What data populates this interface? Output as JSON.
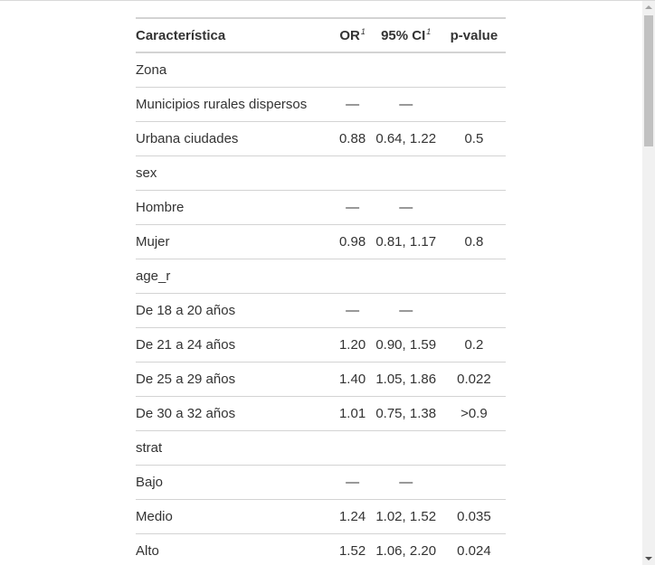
{
  "table": {
    "headers": {
      "characteristic": "Característica",
      "or": "OR",
      "or_footnote": "1",
      "ci": "95% CI",
      "ci_footnote": "1",
      "pvalue": "p-value"
    },
    "rows": [
      {
        "label": "Zona",
        "or": "",
        "ci": "",
        "p": "",
        "indent": false
      },
      {
        "label": "Municipios rurales dispersos",
        "or": "—",
        "ci": "—",
        "p": "",
        "indent": true
      },
      {
        "label": "Urbana ciudades",
        "or": "0.88",
        "ci": "0.64, 1.22",
        "p": "0.5",
        "indent": true
      },
      {
        "label": "sex",
        "or": "",
        "ci": "",
        "p": "",
        "indent": false
      },
      {
        "label": "Hombre",
        "or": "—",
        "ci": "—",
        "p": "",
        "indent": true
      },
      {
        "label": "Mujer",
        "or": "0.98",
        "ci": "0.81, 1.17",
        "p": "0.8",
        "indent": true
      },
      {
        "label": "age_r",
        "or": "",
        "ci": "",
        "p": "",
        "indent": false
      },
      {
        "label": "De 18 a 20 años",
        "or": "—",
        "ci": "—",
        "p": "",
        "indent": true
      },
      {
        "label": "De 21 a 24 años",
        "or": "1.20",
        "ci": "0.90, 1.59",
        "p": "0.2",
        "indent": true
      },
      {
        "label": "De 25 a 29 años",
        "or": "1.40",
        "ci": "1.05, 1.86",
        "p": "0.022",
        "indent": true
      },
      {
        "label": "De 30 a 32 años",
        "or": "1.01",
        "ci": "0.75, 1.38",
        "p": ">0.9",
        "indent": true
      },
      {
        "label": "strat",
        "or": "",
        "ci": "",
        "p": "",
        "indent": false
      },
      {
        "label": "Bajo",
        "or": "—",
        "ci": "—",
        "p": "",
        "indent": true
      },
      {
        "label": "Medio",
        "or": "1.24",
        "ci": "1.02, 1.52",
        "p": "0.035",
        "indent": true
      },
      {
        "label": "Alto",
        "or": "1.52",
        "ci": "1.06, 2.20",
        "p": "0.024",
        "indent": true
      }
    ]
  },
  "colors": {
    "text": "#333333",
    "rule": "#d3d3d3",
    "scroll_track": "#f1f1f1",
    "scroll_thumb": "#c1c1c1"
  }
}
